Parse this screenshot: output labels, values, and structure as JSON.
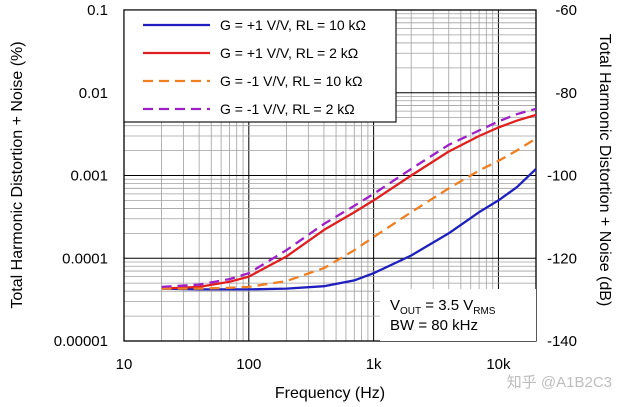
{
  "chart_data": {
    "type": "line",
    "title": "",
    "xlabel": "Frequency (Hz)",
    "ylabel": "Total Harmonic Distortion + Noise (%)",
    "y2label": "Total Harmonic Distortion + Noise (dB)",
    "x_scale": "log",
    "y_scale": "log",
    "xlim": [
      10,
      20000
    ],
    "ylim": [
      1e-05,
      0.1
    ],
    "y2lim": [
      -140,
      -60
    ],
    "grid": true,
    "legend_position": "top-left",
    "x_tick_labels": [
      {
        "value": 10,
        "label": "10"
      },
      {
        "value": 100,
        "label": "100"
      },
      {
        "value": 1000,
        "label": "1k"
      },
      {
        "value": 10000,
        "label": "10k"
      }
    ],
    "y_tick_labels": [
      {
        "value": 0.1,
        "label": "0.1"
      },
      {
        "value": 0.01,
        "label": "0.01"
      },
      {
        "value": 0.001,
        "label": "0.001"
      },
      {
        "value": 0.0001,
        "label": "0.0001"
      },
      {
        "value": 1e-05,
        "label": "0.00001"
      }
    ],
    "y2_tick_labels": [
      {
        "value": -60,
        "label": "-60"
      },
      {
        "value": -80,
        "label": "-80"
      },
      {
        "value": -100,
        "label": "-100"
      },
      {
        "value": -120,
        "label": "-120"
      },
      {
        "value": -140,
        "label": "-140"
      }
    ],
    "series": [
      {
        "name": "G = +1 V/V, RL = 10 kΩ",
        "color": "#1f1fbf",
        "dash": "solid",
        "x": [
          20,
          40,
          70,
          100,
          200,
          400,
          700,
          1000,
          2000,
          4000,
          7000,
          10000,
          14000,
          20000
        ],
        "y": [
          4.3e-05,
          4.2e-05,
          4.2e-05,
          4.2e-05,
          4.3e-05,
          4.6e-05,
          5.4e-05,
          6.6e-05,
          0.000108,
          0.0002,
          0.00036,
          0.0005,
          0.00072,
          0.0012
        ]
      },
      {
        "name": "G = +1 V/V, RL = 2 kΩ",
        "color": "#e02020",
        "dash": "solid",
        "x": [
          20,
          40,
          70,
          100,
          200,
          400,
          700,
          1000,
          2000,
          4000,
          7000,
          10000,
          14000,
          20000
        ],
        "y": [
          4.3e-05,
          4.5e-05,
          5.2e-05,
          6e-05,
          0.000105,
          0.00022,
          0.00036,
          0.0005,
          0.001,
          0.00195,
          0.003,
          0.0038,
          0.0046,
          0.0054
        ]
      },
      {
        "name": "G = -1 V/V, RL = 10 kΩ",
        "color": "#f07f22",
        "dash": "dashed",
        "x": [
          20,
          40,
          70,
          100,
          200,
          400,
          700,
          1000,
          2000,
          4000,
          7000,
          10000,
          14000,
          20000
        ],
        "y": [
          4.3e-05,
          4.3e-05,
          4.4e-05,
          4.5e-05,
          5.3e-05,
          7.6e-05,
          0.000125,
          0.00018,
          0.00036,
          0.0007,
          0.00115,
          0.0015,
          0.002,
          0.0028
        ]
      },
      {
        "name": "G = -1 V/V, RL = 2 kΩ",
        "color": "#a020c8",
        "dash": "dashed",
        "x": [
          20,
          40,
          70,
          100,
          200,
          400,
          700,
          1000,
          2000,
          4000,
          7000,
          10000,
          14000,
          20000
        ],
        "y": [
          4.5e-05,
          4.8e-05,
          5.6e-05,
          6.6e-05,
          0.000125,
          0.00026,
          0.00043,
          0.0006,
          0.0012,
          0.00235,
          0.0035,
          0.0045,
          0.0055,
          0.0064
        ]
      }
    ],
    "annotations": [
      {
        "kind": "vout",
        "prefix": "V",
        "prefix_sub": "OUT",
        "value": " = 3.5 V",
        "value_sub": "RMS"
      },
      {
        "kind": "bw",
        "text": "BW = 80 kHz"
      }
    ]
  },
  "watermark": "知乎 @A1B2C3"
}
